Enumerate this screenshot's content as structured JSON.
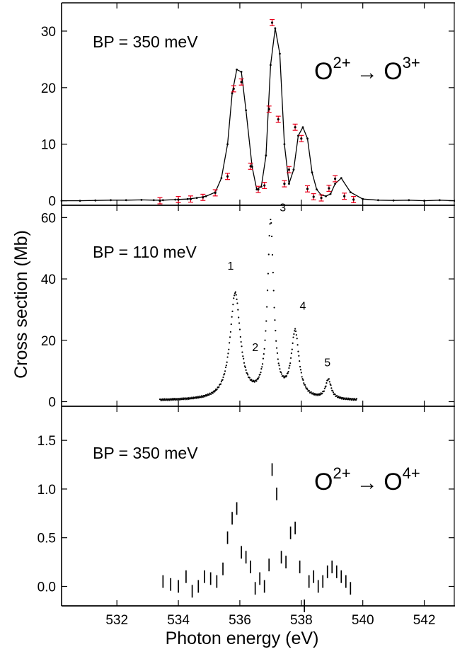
{
  "figure": {
    "xlabel": "Photon energy (eV)",
    "ylabel": "Cross section (Mb)"
  },
  "chart_data": [
    {
      "type": "line",
      "panel": "top",
      "annotation_bp": "BP = 350 meV",
      "annotation_process": {
        "base": "O",
        "from_charge": "2+",
        "arrow": "→",
        "to_charge": "3+"
      },
      "xlim": [
        530.2,
        543.0
      ],
      "ylim": [
        -0.8,
        35.0
      ],
      "xticks": [
        532,
        534,
        536,
        538,
        540,
        542
      ],
      "yticks": [
        0,
        10,
        20,
        30
      ],
      "line_color": "#000000",
      "errorbar_color": "#e8001c",
      "line": {
        "x": [
          530.2,
          530.8,
          531.3,
          531.8,
          532.3,
          532.8,
          533.2,
          533.5,
          533.9,
          534.3,
          534.6,
          534.9,
          535.2,
          535.4,
          535.6,
          535.75,
          535.9,
          536.05,
          536.2,
          536.4,
          536.55,
          536.7,
          536.85,
          537.0,
          537.15,
          537.3,
          537.45,
          537.6,
          537.75,
          537.9,
          538.05,
          538.2,
          538.35,
          538.5,
          538.65,
          538.8,
          538.95,
          539.1,
          539.3,
          539.6,
          540.0,
          540.5,
          541.0,
          541.5,
          542.0,
          542.5,
          543.0
        ],
        "y": [
          0.0,
          0.0,
          0.05,
          0.1,
          0.1,
          0.15,
          0.1,
          0.1,
          0.2,
          0.3,
          0.5,
          0.8,
          1.5,
          4.0,
          10.0,
          19.0,
          23.2,
          22.8,
          16.0,
          6.0,
          2.0,
          2.5,
          8.0,
          24.0,
          30.5,
          26.0,
          10.0,
          3.0,
          5.5,
          11.5,
          13.0,
          11.0,
          5.0,
          2.0,
          1.0,
          0.8,
          1.2,
          3.0,
          4.0,
          1.5,
          0.3,
          0.1,
          0.05,
          0.1,
          0.0,
          0.1,
          0.0
        ]
      },
      "error_points": {
        "x": [
          533.4,
          534.0,
          534.4,
          534.8,
          535.2,
          535.6,
          535.8,
          536.05,
          536.35,
          536.6,
          536.8,
          536.95,
          537.05,
          537.25,
          537.45,
          537.6,
          537.8,
          538.0,
          538.2,
          538.4,
          538.65,
          538.9,
          539.1,
          539.4,
          539.7
        ],
        "y": [
          0.0,
          0.2,
          0.3,
          0.6,
          1.4,
          4.3,
          19.8,
          21.0,
          6.1,
          2.0,
          2.7,
          16.2,
          31.5,
          14.4,
          3.0,
          5.5,
          13.0,
          11.0,
          2.1,
          0.7,
          0.5,
          2.2,
          3.9,
          0.8,
          0.2
        ],
        "err": [
          0.3,
          0.3,
          0.3,
          0.3,
          0.3,
          0.3,
          0.3,
          0.3,
          0.3,
          0.3,
          0.3,
          0.3,
          0.3,
          0.3,
          0.3,
          0.3,
          0.3,
          0.3,
          0.3,
          0.3,
          0.3,
          0.3,
          0.3,
          0.3,
          0.3
        ]
      }
    },
    {
      "type": "scatter",
      "panel": "middle",
      "annotation_bp": "BP = 110 meV",
      "peak_labels": [
        {
          "text": "1",
          "x": 535.7,
          "y": 43.0
        },
        {
          "text": "2",
          "x": 536.5,
          "y": 16.5
        },
        {
          "text": "3",
          "x": 537.4,
          "y": 62.0
        },
        {
          "text": "4",
          "x": 538.05,
          "y": 30.0
        },
        {
          "text": "5",
          "x": 538.85,
          "y": 11.5
        }
      ],
      "xlim": [
        530.2,
        543.0
      ],
      "ylim": [
        -1.5,
        64.0
      ],
      "xticks": [
        532,
        534,
        536,
        538,
        540,
        542
      ],
      "yticks": [
        0,
        20,
        40,
        60
      ],
      "marker_color": "#000000",
      "peaks": [
        {
          "center": 535.85,
          "height": 34.5,
          "width": 0.2
        },
        {
          "center": 537.0,
          "height": 57.5,
          "width": 0.12
        },
        {
          "center": 537.8,
          "height": 21.5,
          "width": 0.15
        },
        {
          "center": 538.88,
          "height": 6.3,
          "width": 0.11
        }
      ],
      "baseline": 0.3,
      "x_range": [
        533.4,
        539.8
      ]
    },
    {
      "type": "scatter",
      "panel": "bottom",
      "annotation_bp": "BP = 350 meV",
      "annotation_process": {
        "base": "O",
        "from_charge": "2+",
        "arrow": "→",
        "to_charge": "4+"
      },
      "xlim": [
        530.2,
        543.0
      ],
      "ylim": [
        -0.2,
        1.85
      ],
      "xticks": [
        532,
        534,
        536,
        538,
        540,
        542
      ],
      "xtick_labels": [
        "532",
        "534",
        "536",
        "538",
        "540",
        "542"
      ],
      "yticks": [
        0.0,
        0.5,
        1.0,
        1.5
      ],
      "ytick_labels": [
        "0.0",
        "0.5",
        "1.0",
        "1.5"
      ],
      "marker_color": "#000000",
      "error_points": {
        "x": [
          533.5,
          533.75,
          534.0,
          534.25,
          534.45,
          534.65,
          534.85,
          535.05,
          535.25,
          535.45,
          535.6,
          535.75,
          535.9,
          536.05,
          536.2,
          536.35,
          536.5,
          536.65,
          536.8,
          536.95,
          537.05,
          537.2,
          537.35,
          537.5,
          537.65,
          537.8,
          537.95,
          538.1,
          538.25,
          538.4,
          538.55,
          538.7,
          538.85,
          539.0,
          539.15,
          539.3,
          539.45,
          539.6
        ],
        "y": [
          0.05,
          0.02,
          0.0,
          0.1,
          -0.05,
          0.0,
          0.1,
          0.08,
          0.05,
          0.18,
          0.5,
          0.7,
          0.8,
          0.35,
          0.3,
          0.2,
          -0.02,
          0.08,
          0.0,
          0.22,
          1.2,
          0.95,
          0.3,
          0.25,
          0.55,
          0.6,
          0.2,
          -0.2,
          0.05,
          0.1,
          0.0,
          0.05,
          0.15,
          0.2,
          0.15,
          0.1,
          0.05,
          -0.02
        ],
        "err": [
          0.065,
          0.065,
          0.065,
          0.065,
          0.065,
          0.065,
          0.065,
          0.065,
          0.065,
          0.065,
          0.065,
          0.065,
          0.065,
          0.065,
          0.065,
          0.065,
          0.065,
          0.065,
          0.065,
          0.065,
          0.065,
          0.065,
          0.065,
          0.065,
          0.065,
          0.065,
          0.065,
          0.065,
          0.065,
          0.065,
          0.065,
          0.065,
          0.065,
          0.065,
          0.065,
          0.065,
          0.065,
          0.065
        ]
      }
    }
  ]
}
